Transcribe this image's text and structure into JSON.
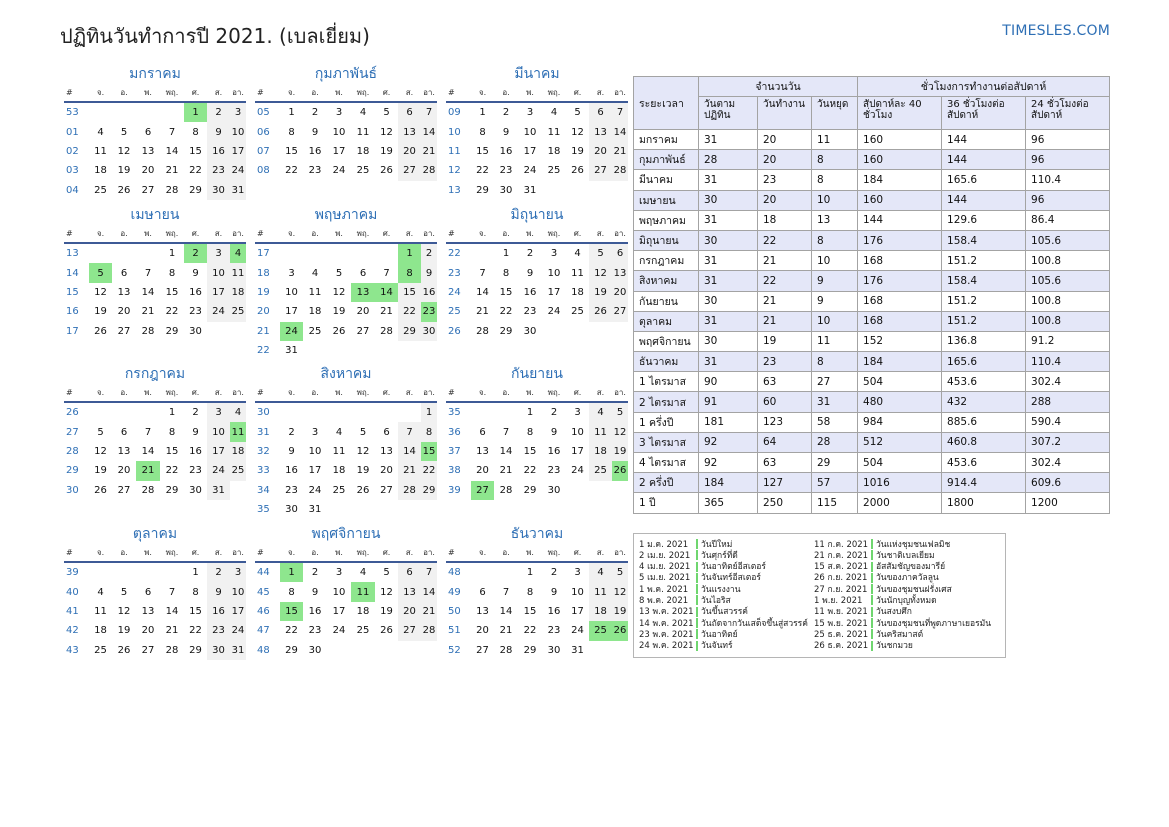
{
  "title": "ปฏิทินวันทำการปี 2021. (เบลเยี่ยม)",
  "site": "TIMESLES.COM",
  "colors": {
    "holiday": "#8ee68e",
    "weekend": "#f1f1f1",
    "accent": "#2e6fb5",
    "header_bg": "#e4e7f8"
  },
  "weekday_headers": [
    "#",
    "จ.",
    "อ.",
    "พ.",
    "พฤ.",
    "ศ.",
    "ส.",
    "อา."
  ],
  "months": [
    {
      "name": "มกราคม",
      "weeks": [
        {
          "n": "53",
          "d": [
            "",
            "",
            "",
            "",
            "1",
            "2",
            "3"
          ]
        },
        {
          "n": "01",
          "d": [
            "4",
            "5",
            "6",
            "7",
            "8",
            "9",
            "10"
          ]
        },
        {
          "n": "02",
          "d": [
            "11",
            "12",
            "13",
            "14",
            "15",
            "16",
            "17"
          ]
        },
        {
          "n": "03",
          "d": [
            "18",
            "19",
            "20",
            "21",
            "22",
            "23",
            "24"
          ]
        },
        {
          "n": "04",
          "d": [
            "25",
            "26",
            "27",
            "28",
            "29",
            "30",
            "31"
          ]
        }
      ],
      "hol": [
        "1"
      ]
    },
    {
      "name": "กุมภาพันธ์",
      "weeks": [
        {
          "n": "05",
          "d": [
            "1",
            "2",
            "3",
            "4",
            "5",
            "6",
            "7"
          ]
        },
        {
          "n": "06",
          "d": [
            "8",
            "9",
            "10",
            "11",
            "12",
            "13",
            "14"
          ]
        },
        {
          "n": "07",
          "d": [
            "15",
            "16",
            "17",
            "18",
            "19",
            "20",
            "21"
          ]
        },
        {
          "n": "08",
          "d": [
            "22",
            "23",
            "24",
            "25",
            "26",
            "27",
            "28"
          ]
        }
      ],
      "hol": []
    },
    {
      "name": "มีนาคม",
      "weeks": [
        {
          "n": "09",
          "d": [
            "1",
            "2",
            "3",
            "4",
            "5",
            "6",
            "7"
          ]
        },
        {
          "n": "10",
          "d": [
            "8",
            "9",
            "10",
            "11",
            "12",
            "13",
            "14"
          ]
        },
        {
          "n": "11",
          "d": [
            "15",
            "16",
            "17",
            "18",
            "19",
            "20",
            "21"
          ]
        },
        {
          "n": "12",
          "d": [
            "22",
            "23",
            "24",
            "25",
            "26",
            "27",
            "28"
          ]
        },
        {
          "n": "13",
          "d": [
            "29",
            "30",
            "31",
            "",
            "",
            "",
            ""
          ]
        }
      ],
      "hol": []
    },
    {
      "name": "เมษายน",
      "weeks": [
        {
          "n": "13",
          "d": [
            "",
            "",
            "",
            "1",
            "2",
            "3",
            "4"
          ]
        },
        {
          "n": "14",
          "d": [
            "5",
            "6",
            "7",
            "8",
            "9",
            "10",
            "11"
          ]
        },
        {
          "n": "15",
          "d": [
            "12",
            "13",
            "14",
            "15",
            "16",
            "17",
            "18"
          ]
        },
        {
          "n": "16",
          "d": [
            "19",
            "20",
            "21",
            "22",
            "23",
            "24",
            "25"
          ]
        },
        {
          "n": "17",
          "d": [
            "26",
            "27",
            "28",
            "29",
            "30",
            "",
            ""
          ]
        }
      ],
      "hol": [
        "2",
        "4",
        "5"
      ]
    },
    {
      "name": "พฤษภาคม",
      "weeks": [
        {
          "n": "17",
          "d": [
            "",
            "",
            "",
            "",
            "",
            "1",
            "2"
          ]
        },
        {
          "n": "18",
          "d": [
            "3",
            "4",
            "5",
            "6",
            "7",
            "8",
            "9"
          ]
        },
        {
          "n": "19",
          "d": [
            "10",
            "11",
            "12",
            "13",
            "14",
            "15",
            "16"
          ]
        },
        {
          "n": "20",
          "d": [
            "17",
            "18",
            "19",
            "20",
            "21",
            "22",
            "23"
          ]
        },
        {
          "n": "21",
          "d": [
            "24",
            "25",
            "26",
            "27",
            "28",
            "29",
            "30"
          ]
        },
        {
          "n": "22",
          "d": [
            "31",
            "",
            "",
            "",
            "",
            "",
            ""
          ]
        }
      ],
      "hol": [
        "1",
        "8",
        "13",
        "14",
        "23",
        "24"
      ]
    },
    {
      "name": "มิถุนายน",
      "weeks": [
        {
          "n": "22",
          "d": [
            "",
            "1",
            "2",
            "3",
            "4",
            "5",
            "6"
          ]
        },
        {
          "n": "23",
          "d": [
            "7",
            "8",
            "9",
            "10",
            "11",
            "12",
            "13"
          ]
        },
        {
          "n": "24",
          "d": [
            "14",
            "15",
            "16",
            "17",
            "18",
            "19",
            "20"
          ]
        },
        {
          "n": "25",
          "d": [
            "21",
            "22",
            "23",
            "24",
            "25",
            "26",
            "27"
          ]
        },
        {
          "n": "26",
          "d": [
            "28",
            "29",
            "30",
            "",
            "",
            "",
            ""
          ]
        }
      ],
      "hol": []
    },
    {
      "name": "กรกฎาคม",
      "weeks": [
        {
          "n": "26",
          "d": [
            "",
            "",
            "",
            "1",
            "2",
            "3",
            "4"
          ]
        },
        {
          "n": "27",
          "d": [
            "5",
            "6",
            "7",
            "8",
            "9",
            "10",
            "11"
          ]
        },
        {
          "n": "28",
          "d": [
            "12",
            "13",
            "14",
            "15",
            "16",
            "17",
            "18"
          ]
        },
        {
          "n": "29",
          "d": [
            "19",
            "20",
            "21",
            "22",
            "23",
            "24",
            "25"
          ]
        },
        {
          "n": "30",
          "d": [
            "26",
            "27",
            "28",
            "29",
            "30",
            "31",
            ""
          ]
        }
      ],
      "hol": [
        "11",
        "21"
      ]
    },
    {
      "name": "สิงหาคม",
      "weeks": [
        {
          "n": "30",
          "d": [
            "",
            "",
            "",
            "",
            "",
            "",
            "1"
          ]
        },
        {
          "n": "31",
          "d": [
            "2",
            "3",
            "4",
            "5",
            "6",
            "7",
            "8"
          ]
        },
        {
          "n": "32",
          "d": [
            "9",
            "10",
            "11",
            "12",
            "13",
            "14",
            "15"
          ]
        },
        {
          "n": "33",
          "d": [
            "16",
            "17",
            "18",
            "19",
            "20",
            "21",
            "22"
          ]
        },
        {
          "n": "34",
          "d": [
            "23",
            "24",
            "25",
            "26",
            "27",
            "28",
            "29"
          ]
        },
        {
          "n": "35",
          "d": [
            "30",
            "31",
            "",
            "",
            "",
            "",
            ""
          ]
        }
      ],
      "hol": [
        "15"
      ]
    },
    {
      "name": "กันยายน",
      "weeks": [
        {
          "n": "35",
          "d": [
            "",
            "",
            "1",
            "2",
            "3",
            "4",
            "5"
          ]
        },
        {
          "n": "36",
          "d": [
            "6",
            "7",
            "8",
            "9",
            "10",
            "11",
            "12"
          ]
        },
        {
          "n": "37",
          "d": [
            "13",
            "14",
            "15",
            "16",
            "17",
            "18",
            "19"
          ]
        },
        {
          "n": "38",
          "d": [
            "20",
            "21",
            "22",
            "23",
            "24",
            "25",
            "26"
          ]
        },
        {
          "n": "39",
          "d": [
            "27",
            "28",
            "29",
            "30",
            "",
            "",
            ""
          ]
        }
      ],
      "hol": [
        "26",
        "27"
      ]
    },
    {
      "name": "ตุลาคม",
      "weeks": [
        {
          "n": "39",
          "d": [
            "",
            "",
            "",
            "",
            "1",
            "2",
            "3"
          ]
        },
        {
          "n": "40",
          "d": [
            "4",
            "5",
            "6",
            "7",
            "8",
            "9",
            "10"
          ]
        },
        {
          "n": "41",
          "d": [
            "11",
            "12",
            "13",
            "14",
            "15",
            "16",
            "17"
          ]
        },
        {
          "n": "42",
          "d": [
            "18",
            "19",
            "20",
            "21",
            "22",
            "23",
            "24"
          ]
        },
        {
          "n": "43",
          "d": [
            "25",
            "26",
            "27",
            "28",
            "29",
            "30",
            "31"
          ]
        }
      ],
      "hol": []
    },
    {
      "name": "พฤศจิกายน",
      "weeks": [
        {
          "n": "44",
          "d": [
            "1",
            "2",
            "3",
            "4",
            "5",
            "6",
            "7"
          ]
        },
        {
          "n": "45",
          "d": [
            "8",
            "9",
            "10",
            "11",
            "12",
            "13",
            "14"
          ]
        },
        {
          "n": "46",
          "d": [
            "15",
            "16",
            "17",
            "18",
            "19",
            "20",
            "21"
          ]
        },
        {
          "n": "47",
          "d": [
            "22",
            "23",
            "24",
            "25",
            "26",
            "27",
            "28"
          ]
        },
        {
          "n": "48",
          "d": [
            "29",
            "30",
            "",
            "",
            "",
            "",
            ""
          ]
        }
      ],
      "hol": [
        "1",
        "11",
        "15"
      ]
    },
    {
      "name": "ธันวาคม",
      "weeks": [
        {
          "n": "48",
          "d": [
            "",
            "",
            "1",
            "2",
            "3",
            "4",
            "5"
          ]
        },
        {
          "n": "49",
          "d": [
            "6",
            "7",
            "8",
            "9",
            "10",
            "11",
            "12"
          ]
        },
        {
          "n": "50",
          "d": [
            "13",
            "14",
            "15",
            "16",
            "17",
            "18",
            "19"
          ]
        },
        {
          "n": "51",
          "d": [
            "20",
            "21",
            "22",
            "23",
            "24",
            "25",
            "26"
          ]
        },
        {
          "n": "52",
          "d": [
            "27",
            "28",
            "29",
            "30",
            "31",
            "",
            ""
          ]
        }
      ],
      "hol": [
        "25",
        "26"
      ]
    }
  ],
  "stats": {
    "period_label": "ระยะเวลา",
    "group_days": "จำนวนวัน",
    "group_hours": "ชั่วโมงการทำงานต่อสัปดาห์",
    "sub_headers": [
      "วันตามปฏิทิน",
      "วันทำงาน",
      "วันหยุด",
      "สัปดาห์ละ 40 ชั่วโมง",
      "36 ชั่วโมงต่อสัปดาห์",
      "24 ชั่วโมงต่อสัปดาห์"
    ],
    "rows": [
      [
        "มกราคม",
        "31",
        "20",
        "11",
        "160",
        "144",
        "96"
      ],
      [
        "กุมภาพันธ์",
        "28",
        "20",
        "8",
        "160",
        "144",
        "96"
      ],
      [
        "มีนาคม",
        "31",
        "23",
        "8",
        "184",
        "165.6",
        "110.4"
      ],
      [
        "เมษายน",
        "30",
        "20",
        "10",
        "160",
        "144",
        "96"
      ],
      [
        "พฤษภาคม",
        "31",
        "18",
        "13",
        "144",
        "129.6",
        "86.4"
      ],
      [
        "มิถุนายน",
        "30",
        "22",
        "8",
        "176",
        "158.4",
        "105.6"
      ],
      [
        "กรกฎาคม",
        "31",
        "21",
        "10",
        "168",
        "151.2",
        "100.8"
      ],
      [
        "สิงหาคม",
        "31",
        "22",
        "9",
        "176",
        "158.4",
        "105.6"
      ],
      [
        "กันยายน",
        "30",
        "21",
        "9",
        "168",
        "151.2",
        "100.8"
      ],
      [
        "ตุลาคม",
        "31",
        "21",
        "10",
        "168",
        "151.2",
        "100.8"
      ],
      [
        "พฤศจิกายน",
        "30",
        "19",
        "11",
        "152",
        "136.8",
        "91.2"
      ],
      [
        "ธันวาคม",
        "31",
        "23",
        "8",
        "184",
        "165.6",
        "110.4"
      ],
      [
        "1 ไตรมาส",
        "90",
        "63",
        "27",
        "504",
        "453.6",
        "302.4"
      ],
      [
        "2 ไตรมาส",
        "91",
        "60",
        "31",
        "480",
        "432",
        "288"
      ],
      [
        "1 ครึ่งปี",
        "181",
        "123",
        "58",
        "984",
        "885.6",
        "590.4"
      ],
      [
        "3 ไตรมาส",
        "92",
        "64",
        "28",
        "512",
        "460.8",
        "307.2"
      ],
      [
        "4 ไตรมาส",
        "92",
        "63",
        "29",
        "504",
        "453.6",
        "302.4"
      ],
      [
        "2 ครึ่งปี",
        "184",
        "127",
        "57",
        "1016",
        "914.4",
        "609.6"
      ],
      [
        "1 ปี",
        "365",
        "250",
        "115",
        "2000",
        "1800",
        "1200"
      ]
    ]
  },
  "holidays": [
    [
      {
        "date": "1 ม.ค. 2021",
        "name": "วันปีใหม่"
      },
      {
        "date": "2 เม.ย. 2021",
        "name": "วันศุกร์ที่ดี"
      },
      {
        "date": "4 เม.ย. 2021",
        "name": "วันอาทิตย์อีสเตอร์"
      },
      {
        "date": "5 เม.ย. 2021",
        "name": "วันจันทร์อีสเตอร์"
      },
      {
        "date": "1 พ.ค. 2021",
        "name": "วันแรงงาน"
      },
      {
        "date": "8 พ.ค. 2021",
        "name": "วันไอริส"
      },
      {
        "date": "13 พ.ค. 2021",
        "name": "วันขึ้นสวรรค์"
      },
      {
        "date": "14 พ.ค. 2021",
        "name": "วันถัดจากวันเสด็จขึ้นสู่สวรรค์"
      },
      {
        "date": "23 พ.ค. 2021",
        "name": "วันอาทิตย์"
      },
      {
        "date": "24 พ.ค. 2021",
        "name": "วันจันทร์"
      }
    ],
    [
      {
        "date": "11 ก.ค. 2021",
        "name": "วันแห่งชุมชนเฟลมิช"
      },
      {
        "date": "21 ก.ค. 2021",
        "name": "วันชาติเบลเยียม"
      },
      {
        "date": "15 ส.ค. 2021",
        "name": "อัสสัมชัญของมารีย์"
      },
      {
        "date": "26 ก.ย. 2021",
        "name": "วันของภาควัลลูน"
      },
      {
        "date": "27 ก.ย. 2021",
        "name": "วันของชุมชนฝรั่งเศส"
      },
      {
        "date": "1 พ.ย. 2021",
        "name": "วันนักบุญทั้งหมด"
      },
      {
        "date": "11 พ.ย. 2021",
        "name": "วันสงบศึก"
      },
      {
        "date": "15 พ.ย. 2021",
        "name": "วันของชุมชนที่พูดภาษาเยอรมัน"
      },
      {
        "date": "25 ธ.ค. 2021",
        "name": "วันคริสมาสต์"
      },
      {
        "date": "26 ธ.ค. 2021",
        "name": "วันชกมวย"
      }
    ]
  ]
}
